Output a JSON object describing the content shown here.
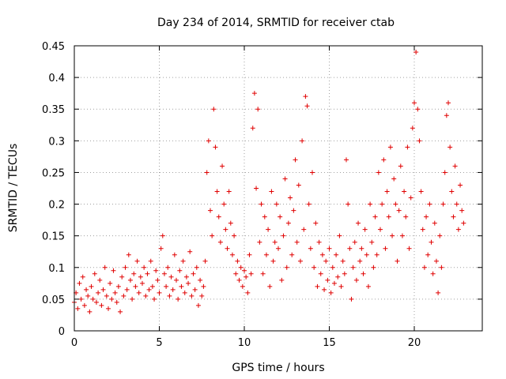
{
  "chart_data": {
    "type": "scatter",
    "title": "Day 234 of 2014, SRMTID for receiver ctab",
    "xlabel": "GPS time / hours",
    "ylabel": "SRMTID / TECUs",
    "xlim": [
      0,
      24
    ],
    "ylim": [
      0,
      0.45
    ],
    "xticks": [
      0,
      5,
      10,
      15,
      20
    ],
    "xtick_labels": [
      "0",
      "5",
      "10",
      "15",
      "20"
    ],
    "yticks": [
      0,
      0.05,
      0.1,
      0.15,
      0.2,
      0.25,
      0.3,
      0.35,
      0.4,
      0.45
    ],
    "ytick_labels": [
      "0",
      "0.05",
      "0.1",
      "0.15",
      "0.2",
      "0.25",
      "0.3",
      "0.35",
      "0.4",
      "0.45"
    ],
    "grid": true,
    "marker": "+",
    "color": "#e00000",
    "series": [
      {
        "name": "SRMTID",
        "points": [
          [
            0.0,
            0.045
          ],
          [
            0.1,
            0.06
          ],
          [
            0.2,
            0.035
          ],
          [
            0.3,
            0.075
          ],
          [
            0.4,
            0.05
          ],
          [
            0.5,
            0.085
          ],
          [
            0.6,
            0.04
          ],
          [
            0.7,
            0.065
          ],
          [
            0.8,
            0.055
          ],
          [
            0.9,
            0.03
          ],
          [
            1.0,
            0.07
          ],
          [
            1.1,
            0.05
          ],
          [
            1.2,
            0.09
          ],
          [
            1.3,
            0.045
          ],
          [
            1.4,
            0.06
          ],
          [
            1.5,
            0.08
          ],
          [
            1.6,
            0.04
          ],
          [
            1.7,
            0.065
          ],
          [
            1.8,
            0.1
          ],
          [
            1.9,
            0.055
          ],
          [
            2.0,
            0.035
          ],
          [
            2.1,
            0.075
          ],
          [
            2.2,
            0.05
          ],
          [
            2.3,
            0.095
          ],
          [
            2.4,
            0.06
          ],
          [
            2.5,
            0.045
          ],
          [
            2.6,
            0.07
          ],
          [
            2.7,
            0.03
          ],
          [
            2.8,
            0.085
          ],
          [
            2.9,
            0.055
          ],
          [
            3.0,
            0.1
          ],
          [
            3.1,
            0.065
          ],
          [
            3.2,
            0.12
          ],
          [
            3.3,
            0.08
          ],
          [
            3.4,
            0.05
          ],
          [
            3.5,
            0.09
          ],
          [
            3.6,
            0.07
          ],
          [
            3.7,
            0.11
          ],
          [
            3.8,
            0.06
          ],
          [
            3.9,
            0.085
          ],
          [
            4.0,
            0.075
          ],
          [
            4.1,
            0.1
          ],
          [
            4.2,
            0.055
          ],
          [
            4.3,
            0.09
          ],
          [
            4.4,
            0.065
          ],
          [
            4.5,
            0.11
          ],
          [
            4.6,
            0.07
          ],
          [
            4.7,
            0.05
          ],
          [
            4.8,
            0.095
          ],
          [
            4.9,
            0.08
          ],
          [
            5.0,
            0.06
          ],
          [
            5.1,
            0.13
          ],
          [
            5.2,
            0.15
          ],
          [
            5.3,
            0.09
          ],
          [
            5.4,
            0.07
          ],
          [
            5.5,
            0.1
          ],
          [
            5.6,
            0.055
          ],
          [
            5.7,
            0.085
          ],
          [
            5.8,
            0.065
          ],
          [
            5.9,
            0.12
          ],
          [
            6.0,
            0.08
          ],
          [
            6.1,
            0.05
          ],
          [
            6.2,
            0.095
          ],
          [
            6.3,
            0.07
          ],
          [
            6.4,
            0.11
          ],
          [
            6.5,
            0.06
          ],
          [
            6.6,
            0.085
          ],
          [
            6.7,
            0.075
          ],
          [
            6.8,
            0.125
          ],
          [
            6.9,
            0.055
          ],
          [
            7.0,
            0.09
          ],
          [
            7.1,
            0.065
          ],
          [
            7.2,
            0.1
          ],
          [
            7.3,
            0.04
          ],
          [
            7.4,
            0.08
          ],
          [
            7.5,
            0.055
          ],
          [
            7.6,
            0.07
          ],
          [
            7.7,
            0.11
          ],
          [
            7.8,
            0.25
          ],
          [
            7.9,
            0.3
          ],
          [
            8.0,
            0.19
          ],
          [
            8.1,
            0.15
          ],
          [
            8.2,
            0.35
          ],
          [
            8.3,
            0.29
          ],
          [
            8.4,
            0.22
          ],
          [
            8.5,
            0.18
          ],
          [
            8.6,
            0.14
          ],
          [
            8.7,
            0.26
          ],
          [
            8.8,
            0.2
          ],
          [
            8.9,
            0.16
          ],
          [
            9.0,
            0.13
          ],
          [
            9.1,
            0.22
          ],
          [
            9.2,
            0.17
          ],
          [
            9.3,
            0.12
          ],
          [
            9.4,
            0.15
          ],
          [
            9.5,
            0.09
          ],
          [
            9.6,
            0.11
          ],
          [
            9.7,
            0.08
          ],
          [
            9.8,
            0.1
          ],
          [
            9.9,
            0.07
          ],
          [
            10.0,
            0.095
          ],
          [
            10.1,
            0.085
          ],
          [
            10.2,
            0.06
          ],
          [
            10.3,
            0.12
          ],
          [
            10.4,
            0.09
          ],
          [
            10.5,
            0.32
          ],
          [
            10.6,
            0.375
          ],
          [
            10.7,
            0.225
          ],
          [
            10.8,
            0.35
          ],
          [
            10.9,
            0.14
          ],
          [
            11.0,
            0.2
          ],
          [
            11.1,
            0.09
          ],
          [
            11.2,
            0.18
          ],
          [
            11.3,
            0.12
          ],
          [
            11.4,
            0.16
          ],
          [
            11.5,
            0.07
          ],
          [
            11.6,
            0.22
          ],
          [
            11.7,
            0.11
          ],
          [
            11.8,
            0.14
          ],
          [
            11.9,
            0.2
          ],
          [
            12.0,
            0.13
          ],
          [
            12.1,
            0.18
          ],
          [
            12.2,
            0.08
          ],
          [
            12.3,
            0.15
          ],
          [
            12.4,
            0.24
          ],
          [
            12.5,
            0.1
          ],
          [
            12.6,
            0.17
          ],
          [
            12.7,
            0.21
          ],
          [
            12.8,
            0.12
          ],
          [
            12.9,
            0.19
          ],
          [
            13.0,
            0.27
          ],
          [
            13.1,
            0.14
          ],
          [
            13.2,
            0.23
          ],
          [
            13.3,
            0.11
          ],
          [
            13.4,
            0.3
          ],
          [
            13.5,
            0.16
          ],
          [
            13.6,
            0.37
          ],
          [
            13.7,
            0.355
          ],
          [
            13.8,
            0.2
          ],
          [
            13.9,
            0.13
          ],
          [
            14.0,
            0.25
          ],
          [
            14.1,
            0.1
          ],
          [
            14.2,
            0.17
          ],
          [
            14.3,
            0.07
          ],
          [
            14.4,
            0.14
          ],
          [
            14.5,
            0.09
          ],
          [
            14.6,
            0.12
          ],
          [
            14.7,
            0.065
          ],
          [
            14.8,
            0.11
          ],
          [
            14.9,
            0.08
          ],
          [
            15.0,
            0.13
          ],
          [
            15.1,
            0.06
          ],
          [
            15.2,
            0.1
          ],
          [
            15.3,
            0.075
          ],
          [
            15.4,
            0.12
          ],
          [
            15.5,
            0.085
          ],
          [
            15.6,
            0.15
          ],
          [
            15.7,
            0.07
          ],
          [
            15.8,
            0.11
          ],
          [
            15.9,
            0.09
          ],
          [
            16.0,
            0.27
          ],
          [
            16.1,
            0.2
          ],
          [
            16.2,
            0.13
          ],
          [
            16.3,
            0.05
          ],
          [
            16.4,
            0.1
          ],
          [
            16.5,
            0.14
          ],
          [
            16.6,
            0.08
          ],
          [
            16.7,
            0.17
          ],
          [
            16.8,
            0.11
          ],
          [
            16.9,
            0.13
          ],
          [
            17.0,
            0.09
          ],
          [
            17.1,
            0.16
          ],
          [
            17.2,
            0.12
          ],
          [
            17.3,
            0.07
          ],
          [
            17.4,
            0.2
          ],
          [
            17.5,
            0.14
          ],
          [
            17.6,
            0.1
          ],
          [
            17.7,
            0.18
          ],
          [
            17.8,
            0.12
          ],
          [
            17.9,
            0.25
          ],
          [
            18.0,
            0.16
          ],
          [
            18.1,
            0.2
          ],
          [
            18.2,
            0.27
          ],
          [
            18.3,
            0.13
          ],
          [
            18.4,
            0.22
          ],
          [
            18.5,
            0.18
          ],
          [
            18.6,
            0.29
          ],
          [
            18.7,
            0.15
          ],
          [
            18.8,
            0.24
          ],
          [
            18.9,
            0.2
          ],
          [
            19.0,
            0.11
          ],
          [
            19.1,
            0.19
          ],
          [
            19.2,
            0.26
          ],
          [
            19.3,
            0.15
          ],
          [
            19.4,
            0.22
          ],
          [
            19.5,
            0.18
          ],
          [
            19.6,
            0.29
          ],
          [
            19.7,
            0.13
          ],
          [
            19.8,
            0.21
          ],
          [
            19.9,
            0.32
          ],
          [
            20.0,
            0.36
          ],
          [
            20.1,
            0.44
          ],
          [
            20.2,
            0.35
          ],
          [
            20.3,
            0.3
          ],
          [
            20.4,
            0.22
          ],
          [
            20.5,
            0.16
          ],
          [
            20.6,
            0.1
          ],
          [
            20.7,
            0.18
          ],
          [
            20.8,
            0.12
          ],
          [
            20.9,
            0.2
          ],
          [
            21.0,
            0.14
          ],
          [
            21.1,
            0.09
          ],
          [
            21.2,
            0.17
          ],
          [
            21.3,
            0.11
          ],
          [
            21.4,
            0.06
          ],
          [
            21.5,
            0.15
          ],
          [
            21.6,
            0.1
          ],
          [
            21.7,
            0.2
          ],
          [
            21.8,
            0.25
          ],
          [
            21.9,
            0.34
          ],
          [
            22.0,
            0.36
          ],
          [
            22.1,
            0.29
          ],
          [
            22.2,
            0.22
          ],
          [
            22.3,
            0.18
          ],
          [
            22.4,
            0.26
          ],
          [
            22.5,
            0.2
          ],
          [
            22.6,
            0.16
          ],
          [
            22.7,
            0.23
          ],
          [
            22.8,
            0.19
          ],
          [
            22.9,
            0.17
          ]
        ]
      }
    ]
  }
}
